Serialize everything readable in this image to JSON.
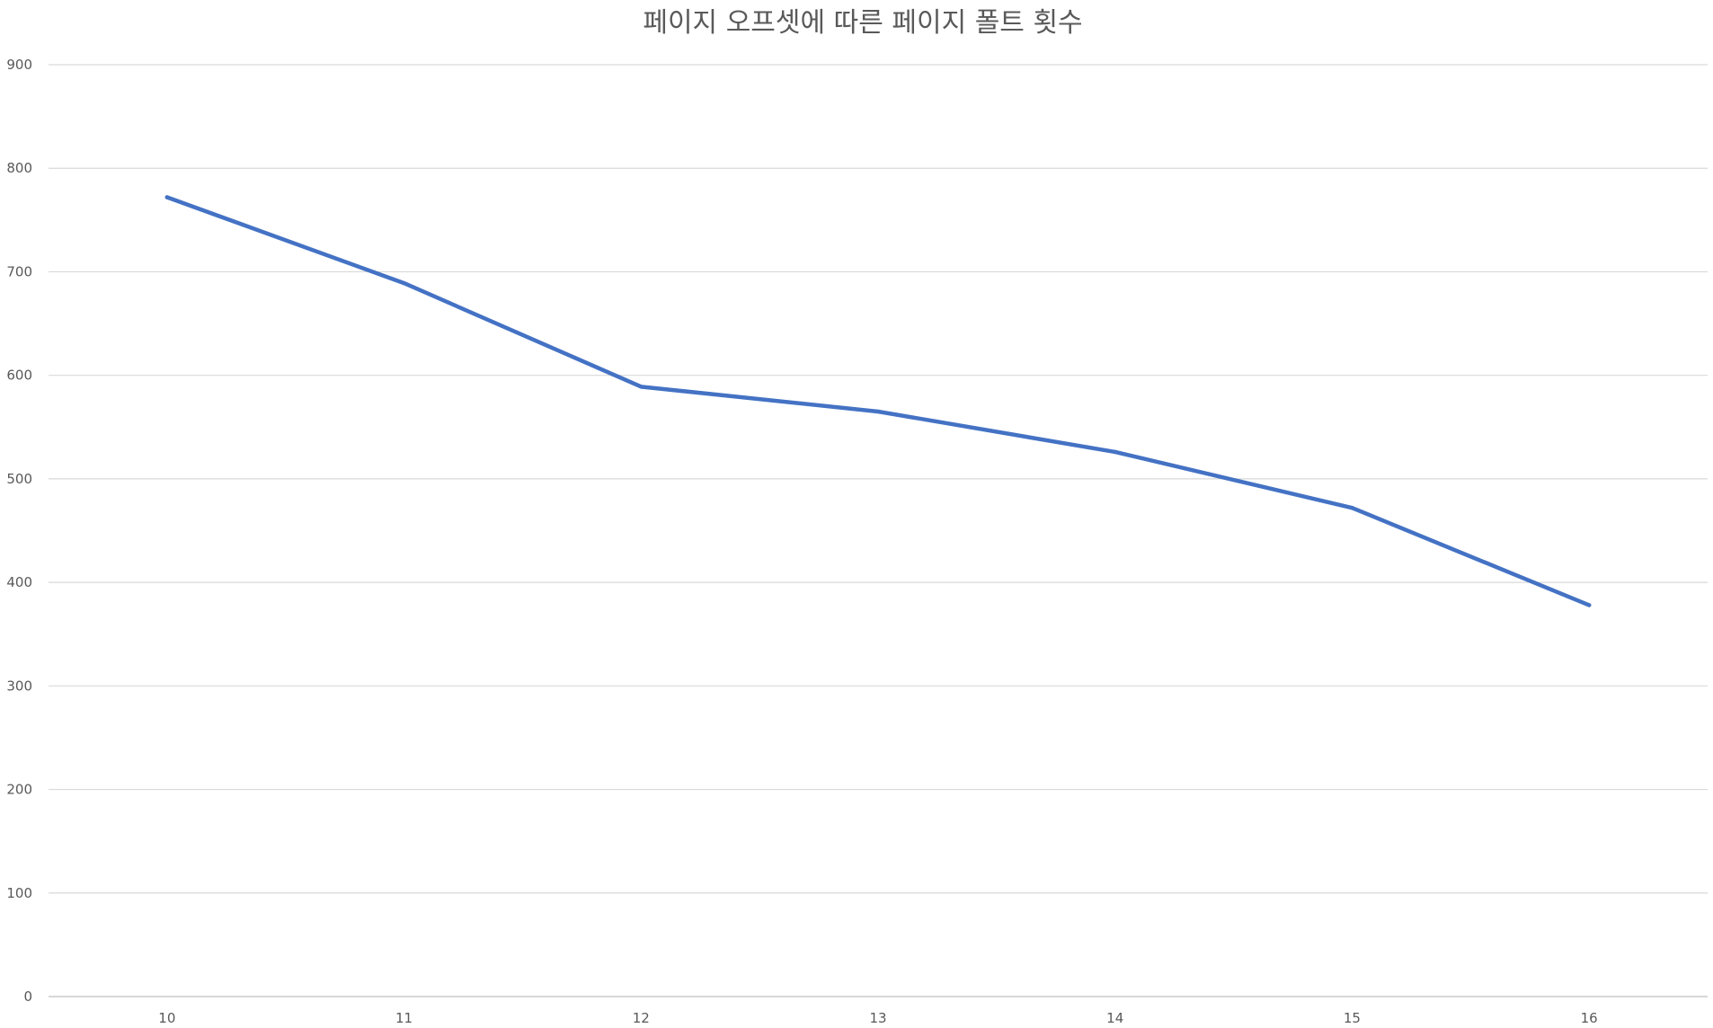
{
  "chart_data": {
    "type": "line",
    "title": "페이지 오프셋에 따른 페이지 폴트 횟수",
    "xlabel": "",
    "ylabel": "",
    "categories": [
      "10",
      "11",
      "12",
      "13",
      "14",
      "15",
      "16"
    ],
    "series": [
      {
        "values": [
          772,
          689,
          589,
          565,
          526,
          472,
          378
        ],
        "color": "#4472C4"
      }
    ],
    "ylim": [
      0,
      900
    ],
    "y_ticks": [
      0,
      100,
      200,
      300,
      400,
      500,
      600,
      700,
      800,
      900
    ],
    "grid": "horizontal",
    "legend": "none"
  }
}
